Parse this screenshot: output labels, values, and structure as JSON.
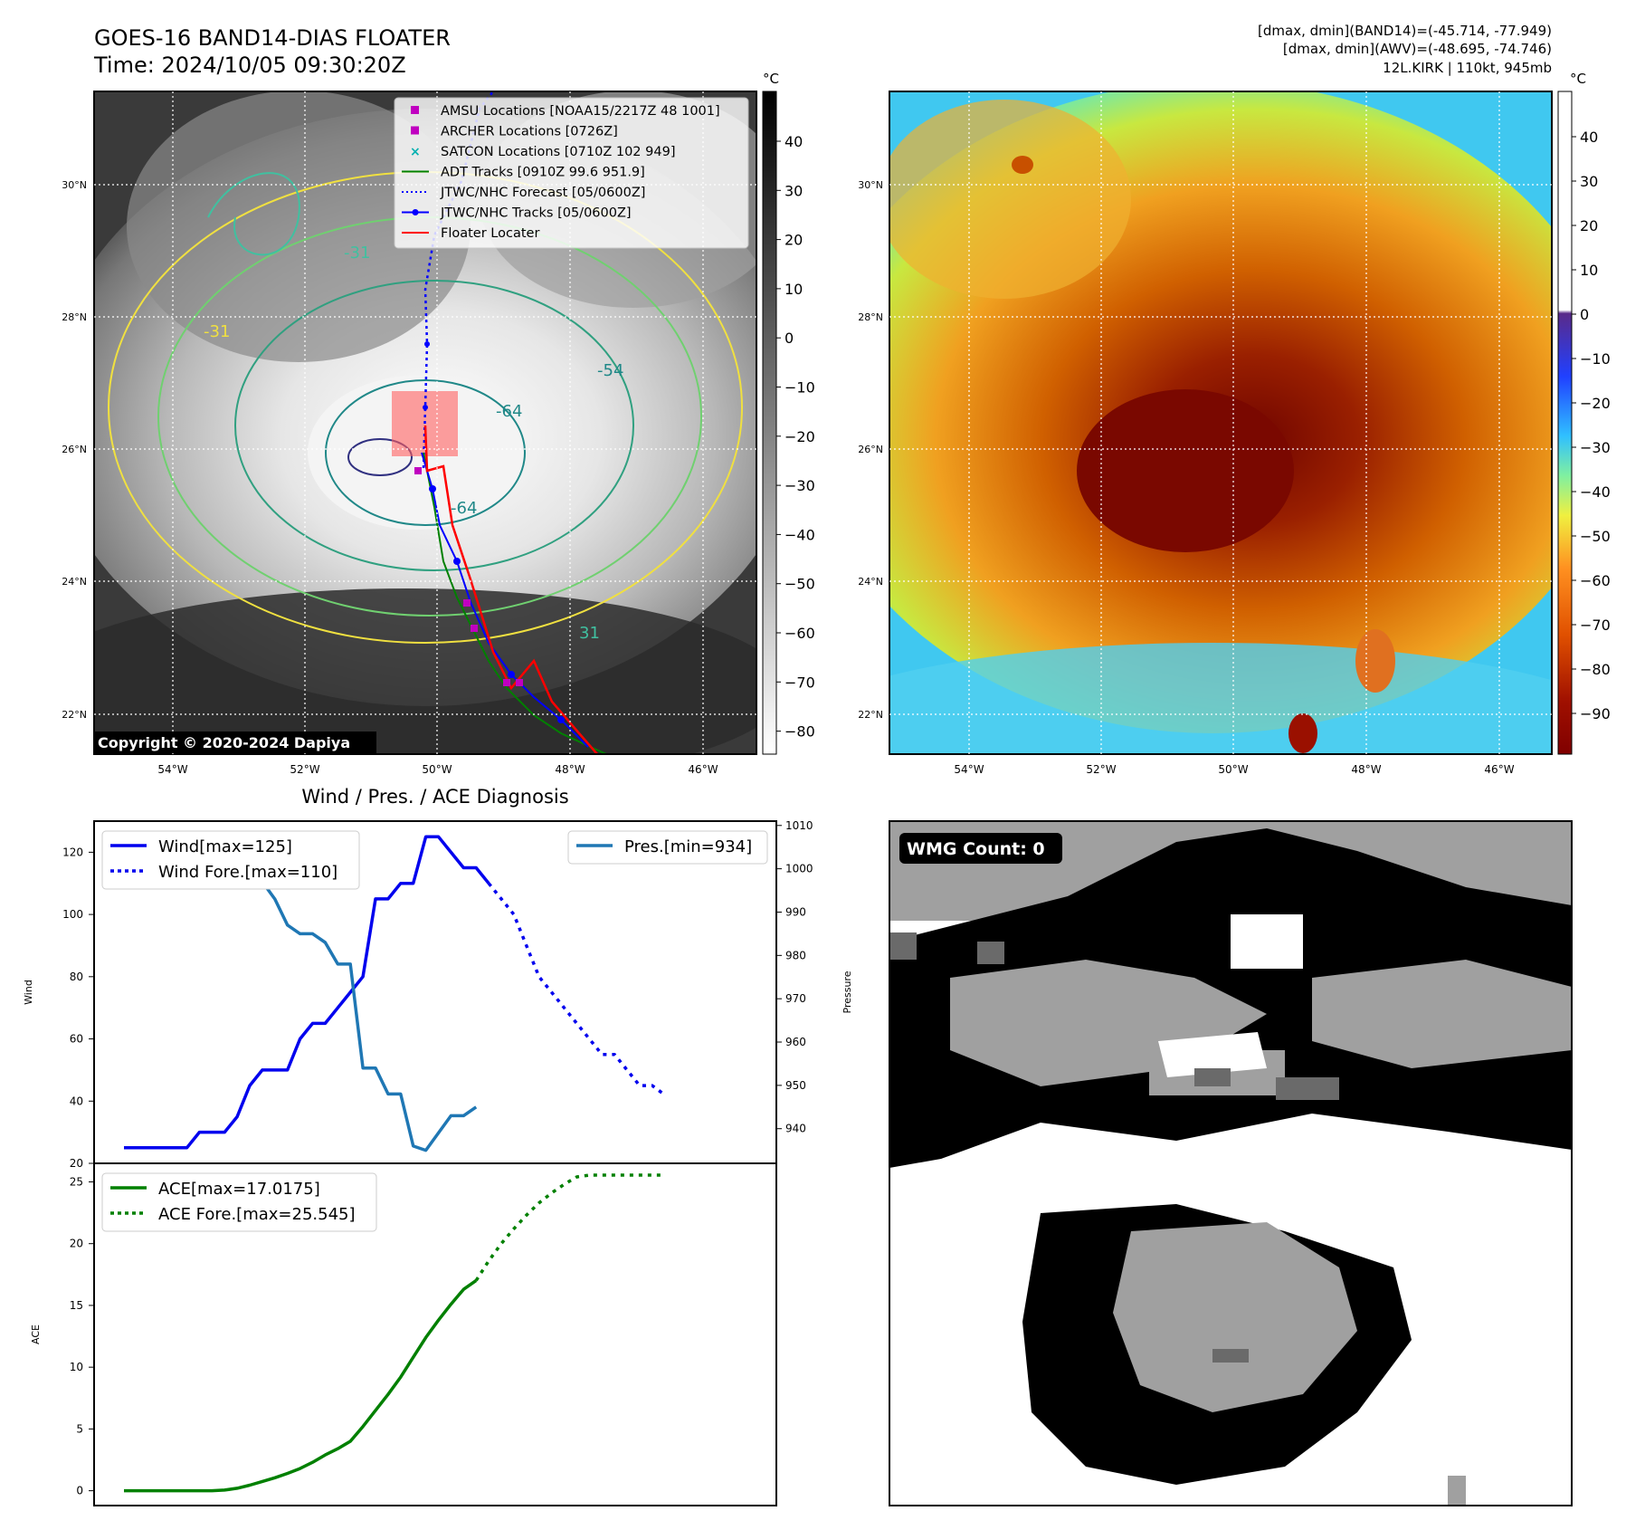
{
  "header": {
    "title": "GOES-16 BAND14-DIAS FLOATER",
    "time": "Time: 2024/10/05 09:30:20Z",
    "info_line1": "[dmax, dmin](BAND14)=(-45.714, -77.949)",
    "info_line2": "[dmax, dmin](AWV)=(-48.695, -74.746)",
    "info_line3": "12L.KIRK | 110kt, 945mb"
  },
  "map_axes": {
    "lat_labels": [
      "30°N",
      "28°N",
      "26°N",
      "24°N",
      "22°N"
    ],
    "lon_labels": [
      "54°W",
      "52°W",
      "50°W",
      "48°W",
      "46°W"
    ]
  },
  "colorbar_left": {
    "unit": "°C",
    "ticks": [
      "40",
      "30",
      "20",
      "10",
      "0",
      "−10",
      "−20",
      "−30",
      "−40",
      "−50",
      "−60",
      "−70",
      "−80"
    ]
  },
  "colorbar_right": {
    "unit": "°C",
    "ticks": [
      "40",
      "30",
      "20",
      "10",
      "0",
      "−10",
      "−20",
      "−30",
      "−40",
      "−50",
      "−60",
      "−70",
      "−80",
      "−90"
    ]
  },
  "legend": {
    "items": [
      {
        "label": "AMSU Locations [NOAA15/2217Z 48 1001]",
        "color": "#c000c0",
        "kind": "square"
      },
      {
        "label": "ARCHER Locations [0726Z]",
        "color": "#c000c0",
        "kind": "square"
      },
      {
        "label": "SATCON Locations [0710Z 102 949]",
        "color": "#00b0b0",
        "kind": "x"
      },
      {
        "label": "ADT Tracks [0910Z 99.6 951.9]",
        "color": "#008000",
        "kind": "line"
      },
      {
        "label": "JTWC/NHC Forecast [05/0600Z]",
        "color": "#0000ff",
        "kind": "dotted"
      },
      {
        "label": "JTWC/NHC Tracks [05/0600Z]",
        "color": "#0000ff",
        "kind": "line-dot"
      },
      {
        "label": "Floater Locater",
        "color": "#ff0000",
        "kind": "line"
      }
    ]
  },
  "contour_labels": [
    "-64",
    "-64",
    "-54",
    "-31",
    "31",
    "-31"
  ],
  "copyright": "Copyright © 2020-2024 Dapiya",
  "wmg": {
    "label": "WMG Count: 0"
  },
  "chart_data": [
    {
      "type": "line",
      "title": "Wind / Pres. / ACE Diagnosis",
      "ylabel": "Wind",
      "ylim": [
        20,
        130
      ],
      "yticks": [
        "20",
        "40",
        "60",
        "80",
        "100",
        "120"
      ],
      "series": [
        {
          "name": "Wind[max=125]",
          "style": "solid",
          "color": "#0000ee",
          "values": [
            25,
            25,
            25,
            25,
            25,
            25,
            30,
            30,
            30,
            35,
            45,
            50,
            50,
            50,
            60,
            65,
            65,
            70,
            75,
            80,
            105,
            105,
            110,
            110,
            125,
            125,
            120,
            115,
            115,
            110
          ]
        },
        {
          "name": "Wind Fore.[max=110]",
          "style": "dotted",
          "color": "#0000ee",
          "start_index": 29,
          "values": [
            110,
            105,
            100,
            90,
            80,
            75,
            70,
            65,
            60,
            55,
            55,
            50,
            45,
            45,
            42
          ]
        }
      ]
    },
    {
      "type": "line",
      "ylabel": "Pressure",
      "ylim": [
        932,
        1011
      ],
      "yticks": [
        "940",
        "950",
        "960",
        "970",
        "980",
        "990",
        "1000",
        "1010"
      ],
      "series": [
        {
          "name": "Pres.[min=934]",
          "style": "solid",
          "color": "#1f77b4",
          "values": [
            1007,
            1007,
            1007,
            1007,
            1007,
            1007,
            1007,
            1006,
            1005,
            1003,
            1001,
            997,
            993,
            987,
            985,
            985,
            983,
            978,
            978,
            954,
            954,
            948,
            948,
            936,
            935,
            939,
            943,
            943,
            945
          ]
        }
      ]
    },
    {
      "type": "line",
      "ylabel": "ACE",
      "ylim": [
        -1.2,
        26.5
      ],
      "yticks": [
        "0",
        "5",
        "10",
        "15",
        "20",
        "25"
      ],
      "series": [
        {
          "name": "ACE[max=17.0175]",
          "style": "solid",
          "color": "#008000",
          "values": [
            0,
            0,
            0,
            0,
            0,
            0,
            0,
            0,
            0.05,
            0.2,
            0.45,
            0.75,
            1.05,
            1.4,
            1.8,
            2.3,
            2.9,
            3.4,
            4.0,
            5.2,
            6.5,
            7.8,
            9.2,
            10.8,
            12.4,
            13.8,
            15.1,
            16.3,
            17.0175
          ]
        },
        {
          "name": "ACE Fore.[max=25.545]",
          "style": "dotted",
          "color": "#008000",
          "start_index": 28,
          "values": [
            17.0175,
            18.6,
            20.0,
            21.2,
            22.3,
            23.3,
            24.1,
            24.8,
            25.4,
            25.545,
            25.545,
            25.545,
            25.545,
            25.545,
            25.545,
            25.545
          ]
        }
      ]
    }
  ]
}
